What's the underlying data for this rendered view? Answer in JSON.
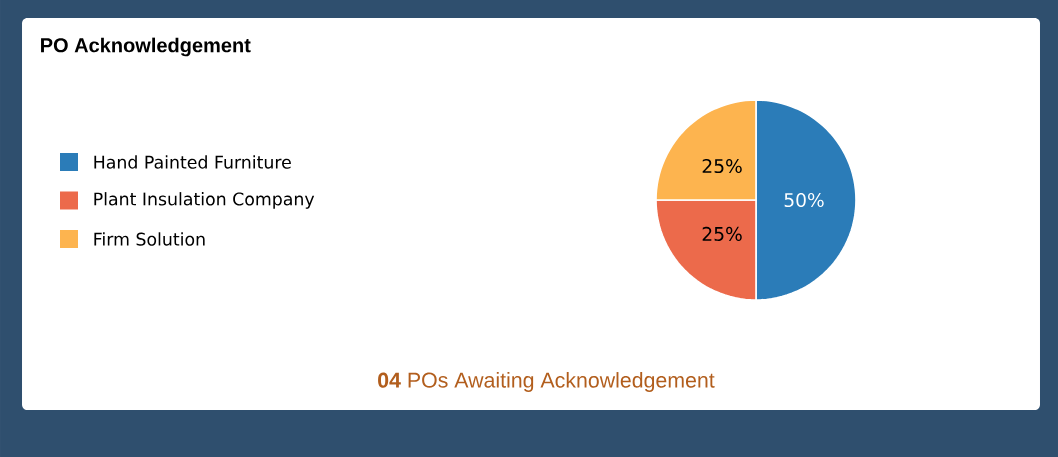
{
  "chart_data": {
    "type": "pie",
    "title": "PO Acknowledgement",
    "categories": [
      "Hand Painted Furniture",
      "Plant Insulation Company",
      "Firm Solution"
    ],
    "values": [
      50,
      25,
      25
    ],
    "colors": [
      "#2b7cb8",
      "#ec6a4b",
      "#fdb44f"
    ],
    "value_labels": [
      "50%",
      "25%",
      "25%"
    ],
    "legend": "left",
    "annotations": [
      "**04** POs Awaiting Acknowledgement"
    ]
  }
}
